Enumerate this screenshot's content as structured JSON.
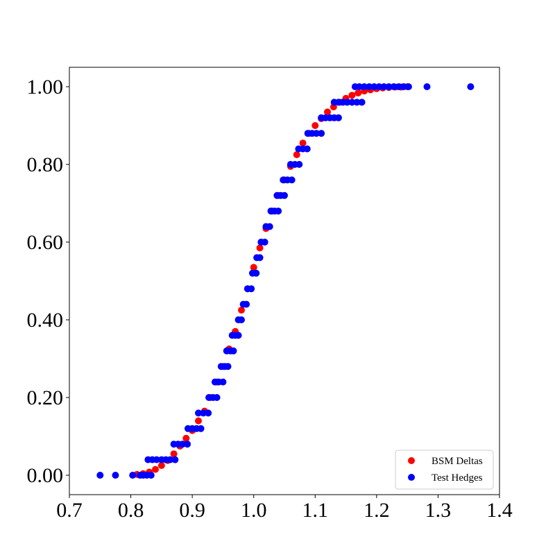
{
  "chart_data": {
    "type": "scatter",
    "title": "",
    "xlabel": "",
    "ylabel": "",
    "xlim": [
      0.7,
      1.4
    ],
    "ylim": [
      -0.05,
      1.05
    ],
    "xticks": [
      0.7,
      0.8,
      0.9,
      1.0,
      1.1,
      1.2,
      1.3,
      1.4
    ],
    "xtick_labels": [
      "0.7",
      "0.8",
      "0.9",
      "1.0",
      "1.1",
      "1.2",
      "1.3",
      "1.4"
    ],
    "yticks": [
      0.0,
      0.2,
      0.4,
      0.6,
      0.8,
      1.0
    ],
    "ytick_labels": [
      "0.00",
      "0.20",
      "0.40",
      "0.60",
      "0.80",
      "1.00"
    ],
    "grid": false,
    "legend": "lower-right",
    "series": [
      {
        "name": "BSM Deltas",
        "color": "#ff0000",
        "points": [
          [
            0.81,
            0.002
          ],
          [
            0.82,
            0.004
          ],
          [
            0.83,
            0.008
          ],
          [
            0.84,
            0.015
          ],
          [
            0.85,
            0.025
          ],
          [
            0.86,
            0.038
          ],
          [
            0.87,
            0.055
          ],
          [
            0.88,
            0.075
          ],
          [
            0.89,
            0.095
          ],
          [
            0.9,
            0.115
          ],
          [
            0.91,
            0.14
          ],
          [
            0.92,
            0.165
          ],
          [
            0.93,
            0.2
          ],
          [
            0.94,
            0.24
          ],
          [
            0.95,
            0.28
          ],
          [
            0.96,
            0.325
          ],
          [
            0.97,
            0.37
          ],
          [
            0.98,
            0.425
          ],
          [
            0.99,
            0.48
          ],
          [
            1.0,
            0.535
          ],
          [
            1.01,
            0.585
          ],
          [
            1.02,
            0.635
          ],
          [
            1.03,
            0.68
          ],
          [
            1.04,
            0.72
          ],
          [
            1.05,
            0.76
          ],
          [
            1.06,
            0.795
          ],
          [
            1.07,
            0.825
          ],
          [
            1.08,
            0.855
          ],
          [
            1.09,
            0.88
          ],
          [
            1.1,
            0.9
          ],
          [
            1.11,
            0.918
          ],
          [
            1.12,
            0.935
          ],
          [
            1.13,
            0.948
          ],
          [
            1.14,
            0.96
          ],
          [
            1.15,
            0.97
          ],
          [
            1.16,
            0.978
          ],
          [
            1.17,
            0.984
          ],
          [
            1.18,
            0.989
          ],
          [
            1.19,
            0.992
          ],
          [
            1.2,
            0.995
          ],
          [
            1.21,
            0.997
          ],
          [
            1.22,
            0.998
          ],
          [
            1.23,
            0.999
          ],
          [
            1.24,
            0.999
          ],
          [
            1.25,
            1.0
          ]
        ]
      },
      {
        "name": "Test Hedges",
        "color": "#0000ff",
        "points": [
          [
            0.75,
            0.0
          ],
          [
            0.775,
            0.0
          ],
          [
            0.803,
            0.0
          ],
          [
            0.815,
            0.0
          ],
          [
            0.82,
            0.0
          ],
          [
            0.826,
            0.0
          ],
          [
            0.833,
            0.0
          ],
          [
            0.828,
            0.04
          ],
          [
            0.835,
            0.04
          ],
          [
            0.842,
            0.04
          ],
          [
            0.85,
            0.04
          ],
          [
            0.857,
            0.04
          ],
          [
            0.864,
            0.04
          ],
          [
            0.872,
            0.04
          ],
          [
            0.87,
            0.08
          ],
          [
            0.877,
            0.08
          ],
          [
            0.884,
            0.08
          ],
          [
            0.892,
            0.08
          ],
          [
            0.893,
            0.12
          ],
          [
            0.9,
            0.12
          ],
          [
            0.907,
            0.12
          ],
          [
            0.914,
            0.12
          ],
          [
            0.91,
            0.16
          ],
          [
            0.918,
            0.16
          ],
          [
            0.926,
            0.16
          ],
          [
            0.927,
            0.2
          ],
          [
            0.934,
            0.2
          ],
          [
            0.94,
            0.2
          ],
          [
            0.937,
            0.24
          ],
          [
            0.943,
            0.24
          ],
          [
            0.95,
            0.24
          ],
          [
            0.947,
            0.28
          ],
          [
            0.953,
            0.28
          ],
          [
            0.958,
            0.28
          ],
          [
            0.956,
            0.32
          ],
          [
            0.962,
            0.32
          ],
          [
            0.967,
            0.32
          ],
          [
            0.965,
            0.36
          ],
          [
            0.97,
            0.36
          ],
          [
            0.975,
            0.36
          ],
          [
            0.975,
            0.4
          ],
          [
            0.98,
            0.4
          ],
          [
            0.983,
            0.44
          ],
          [
            0.988,
            0.44
          ],
          [
            0.99,
            0.48
          ],
          [
            0.996,
            0.48
          ],
          [
            0.998,
            0.52
          ],
          [
            1.004,
            0.52
          ],
          [
            1.005,
            0.56
          ],
          [
            1.01,
            0.56
          ],
          [
            1.012,
            0.6
          ],
          [
            1.018,
            0.6
          ],
          [
            1.02,
            0.64
          ],
          [
            1.026,
            0.64
          ],
          [
            1.028,
            0.68
          ],
          [
            1.034,
            0.68
          ],
          [
            1.04,
            0.68
          ],
          [
            1.038,
            0.72
          ],
          [
            1.044,
            0.72
          ],
          [
            1.05,
            0.72
          ],
          [
            1.048,
            0.76
          ],
          [
            1.055,
            0.76
          ],
          [
            1.062,
            0.76
          ],
          [
            1.06,
            0.8
          ],
          [
            1.067,
            0.8
          ],
          [
            1.074,
            0.8
          ],
          [
            1.073,
            0.84
          ],
          [
            1.08,
            0.84
          ],
          [
            1.087,
            0.84
          ],
          [
            1.088,
            0.88
          ],
          [
            1.095,
            0.88
          ],
          [
            1.102,
            0.88
          ],
          [
            1.11,
            0.88
          ],
          [
            1.11,
            0.92
          ],
          [
            1.117,
            0.92
          ],
          [
            1.124,
            0.92
          ],
          [
            1.131,
            0.92
          ],
          [
            1.138,
            0.92
          ],
          [
            1.131,
            0.96
          ],
          [
            1.138,
            0.96
          ],
          [
            1.145,
            0.96
          ],
          [
            1.152,
            0.96
          ],
          [
            1.16,
            0.96
          ],
          [
            1.168,
            0.96
          ],
          [
            1.176,
            0.96
          ],
          [
            1.165,
            1.0
          ],
          [
            1.172,
            1.0
          ],
          [
            1.18,
            1.0
          ],
          [
            1.188,
            1.0
          ],
          [
            1.196,
            1.0
          ],
          [
            1.204,
            1.0
          ],
          [
            1.212,
            1.0
          ],
          [
            1.22,
            1.0
          ],
          [
            1.228,
            1.0
          ],
          [
            1.236,
            1.0
          ],
          [
            1.244,
            1.0
          ],
          [
            1.252,
            1.0
          ],
          [
            1.282,
            1.0
          ],
          [
            1.353,
            1.0
          ]
        ]
      }
    ]
  }
}
